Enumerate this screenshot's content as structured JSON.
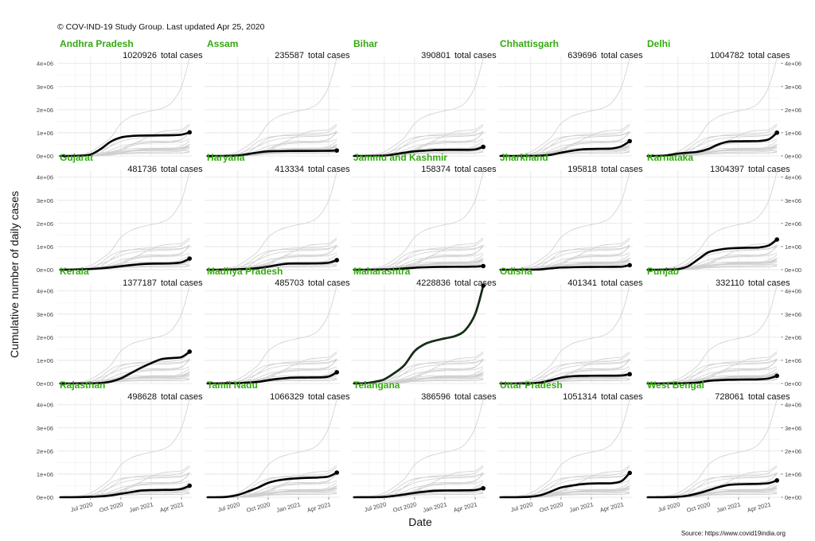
{
  "caption": "© COV-IND-19 Study Group. Last updated Apr 25, 2020",
  "source": "Source: https://www.covid19india.org",
  "title_color": "#33aa11",
  "chart_data": {
    "type": "line",
    "layout": "small-multiples",
    "xlabel": "Date",
    "ylabel": "Cumulative number of daily cases",
    "x_domain": [
      "2020-04-01",
      "2021-04-25"
    ],
    "ylim": [
      0,
      4300000
    ],
    "y_ticks": [
      {
        "value": 0,
        "label": "0e+00"
      },
      {
        "value": 1000000,
        "label": "1e+06"
      },
      {
        "value": 2000000,
        "label": "2e+06"
      },
      {
        "value": 3000000,
        "label": "3e+06"
      },
      {
        "value": 4000000,
        "label": "4e+06"
      }
    ],
    "x_ticks": [
      {
        "value": 3,
        "label": "Jul 2020"
      },
      {
        "value": 6,
        "label": "Oct 2020"
      },
      {
        "value": 9,
        "label": "Jan 2021"
      },
      {
        "value": 12,
        "label": "Apr 2021"
      }
    ],
    "time_points": [
      0,
      1,
      2,
      3,
      4,
      5,
      6,
      7,
      8,
      9,
      10,
      11,
      12,
      12.8
    ],
    "total_label_suffix": "total cases",
    "series": [
      {
        "name": "Andhra Pradesh",
        "total": "1020926",
        "values": [
          0,
          1000,
          10000,
          60000,
          300000,
          620000,
          800000,
          860000,
          880000,
          885000,
          890000,
          895000,
          920000,
          1020926
        ]
      },
      {
        "name": "Assam",
        "total": "235587",
        "values": [
          0,
          100,
          3000,
          20000,
          80000,
          150000,
          200000,
          210000,
          215000,
          217000,
          218000,
          219000,
          222000,
          235587
        ]
      },
      {
        "name": "Bihar",
        "total": "390801",
        "values": [
          0,
          200,
          4000,
          15000,
          70000,
          140000,
          200000,
          230000,
          255000,
          262000,
          263000,
          264000,
          280000,
          390801
        ]
      },
      {
        "name": "Chhattisgarh",
        "total": "639696",
        "values": [
          0,
          50,
          500,
          3000,
          10000,
          50000,
          140000,
          220000,
          280000,
          300000,
          310000,
          320000,
          420000,
          639696
        ]
      },
      {
        "name": "Delhi",
        "total": "1004782",
        "values": [
          0,
          3000,
          30000,
          100000,
          140000,
          180000,
          300000,
          500000,
          620000,
          635000,
          640000,
          645000,
          720000,
          1004782
        ]
      },
      {
        "name": "Gujarat",
        "total": "481736",
        "values": [
          0,
          4000,
          15000,
          30000,
          60000,
          100000,
          150000,
          200000,
          240000,
          260000,
          265000,
          275000,
          320000,
          481736
        ]
      },
      {
        "name": "Haryana",
        "total": "413334",
        "values": [
          0,
          500,
          3000,
          15000,
          35000,
          70000,
          130000,
          210000,
          265000,
          268000,
          270000,
          275000,
          300000,
          413334
        ]
      },
      {
        "name": "Jammu and Kashmir",
        "total": "158374",
        "values": [
          0,
          500,
          3000,
          10000,
          25000,
          55000,
          85000,
          105000,
          118000,
          123000,
          125000,
          127000,
          135000,
          158374
        ]
      },
      {
        "name": "Jharkhand",
        "total": "195818",
        "values": [
          0,
          100,
          500,
          3000,
          15000,
          60000,
          95000,
          105000,
          115000,
          118000,
          120000,
          122000,
          130000,
          195818
        ]
      },
      {
        "name": "Karnataka",
        "total": "1304397",
        "values": [
          0,
          500,
          5000,
          20000,
          150000,
          450000,
          750000,
          860000,
          920000,
          940000,
          950000,
          960000,
          1050000,
          1304397
        ]
      },
      {
        "name": "Kerala",
        "total": "1377187",
        "values": [
          0,
          500,
          1500,
          5000,
          20000,
          80000,
          220000,
          450000,
          680000,
          880000,
          1050000,
          1100000,
          1140000,
          1377187
        ]
      },
      {
        "name": "Madhya Pradesh",
        "total": "485703",
        "values": [
          0,
          3000,
          10000,
          15000,
          40000,
          70000,
          140000,
          200000,
          240000,
          255000,
          258000,
          262000,
          300000,
          485703
        ]
      },
      {
        "name": "Maharashtra",
        "total": "4228836",
        "values": [
          0,
          10000,
          70000,
          180000,
          450000,
          800000,
          1400000,
          1700000,
          1850000,
          1950000,
          2050000,
          2300000,
          3000000,
          4228836
        ]
      },
      {
        "name": "Odisha",
        "total": "401341",
        "values": [
          0,
          300,
          2000,
          8000,
          40000,
          140000,
          250000,
          310000,
          330000,
          335000,
          337000,
          338000,
          345000,
          401341
        ]
      },
      {
        "name": "Punjab",
        "total": "332110",
        "values": [
          0,
          300,
          2000,
          5000,
          15000,
          40000,
          110000,
          140000,
          160000,
          168000,
          173000,
          180000,
          220000,
          332110
        ]
      },
      {
        "name": "Rajasthan",
        "total": "498628",
        "values": [
          0,
          2000,
          8000,
          18000,
          40000,
          80000,
          150000,
          220000,
          290000,
          310000,
          318000,
          322000,
          360000,
          498628
        ]
      },
      {
        "name": "Tamil Nadu",
        "total": "1066329",
        "values": [
          0,
          1000,
          20000,
          100000,
          250000,
          420000,
          620000,
          730000,
          790000,
          820000,
          840000,
          855000,
          900000,
          1066329
        ]
      },
      {
        "name": "Telangana",
        "total": "386596",
        "values": [
          0,
          1000,
          3000,
          15000,
          60000,
          120000,
          190000,
          240000,
          280000,
          292000,
          295000,
          298000,
          310000,
          386596
        ]
      },
      {
        "name": "Uttar Pradesh",
        "total": "1051314",
        "values": [
          0,
          2000,
          8000,
          25000,
          90000,
          250000,
          420000,
          500000,
          560000,
          590000,
          600000,
          605000,
          700000,
          1051314
        ]
      },
      {
        "name": "West Bengal",
        "total": "728061",
        "values": [
          0,
          800,
          5000,
          20000,
          70000,
          170000,
          300000,
          430000,
          530000,
          560000,
          570000,
          580000,
          610000,
          728061
        ]
      }
    ]
  }
}
